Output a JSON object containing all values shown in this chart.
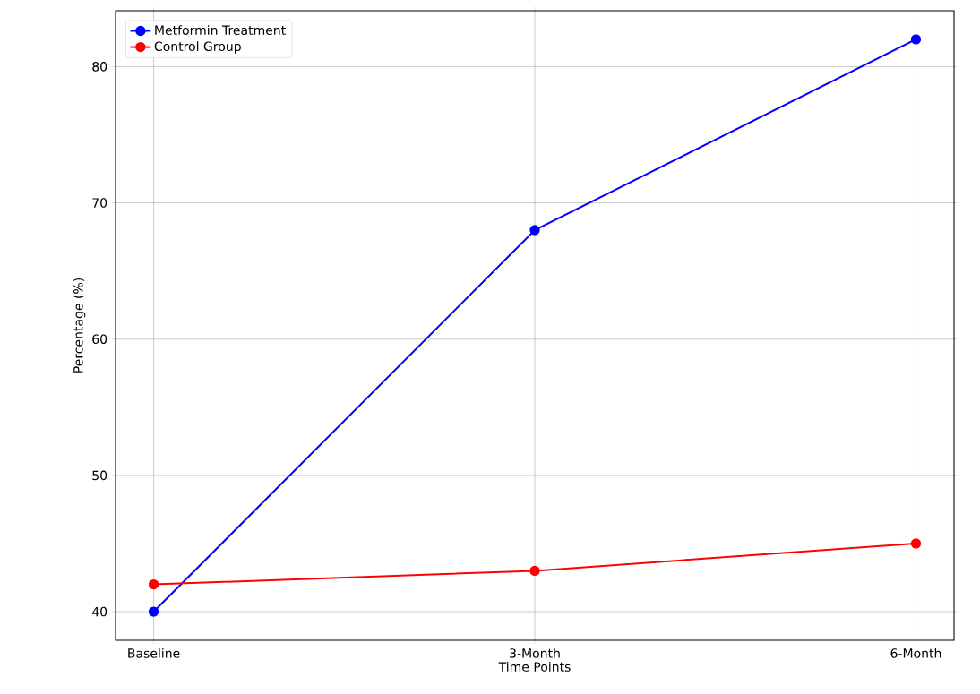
{
  "chart_data": {
    "type": "line",
    "xlabel": "Time Points",
    "ylabel": "Percentage (%)",
    "categories": [
      "Baseline",
      "3-Month",
      "6-Month"
    ],
    "series": [
      {
        "name": "Metformin Treatment",
        "color": "#0000ff",
        "values": [
          40,
          68,
          82
        ]
      },
      {
        "name": "Control Group",
        "color": "#ff0000",
        "values": [
          42,
          43,
          45
        ]
      }
    ],
    "ylim": [
      37.9,
      84.1
    ],
    "yticks": [
      40,
      50,
      60,
      70,
      80
    ],
    "grid": true,
    "legend": "top left",
    "marker": "circle",
    "line_style": "solid"
  }
}
